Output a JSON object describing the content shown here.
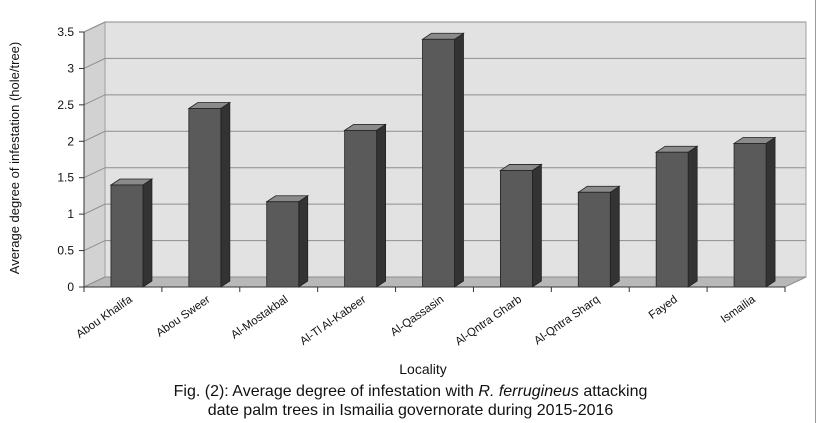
{
  "chart_data": {
    "type": "bar",
    "categories": [
      "Abou Khalifa",
      "Abou Sweer",
      "Al-Mostakbal",
      "Al-Tl Al-Kabeer",
      "Al-Qassasin",
      "Al-Qntra Gharb",
      "Al-Qntra Sharq",
      "Fayed",
      "Ismailia"
    ],
    "values": [
      1.4,
      2.45,
      1.17,
      2.15,
      3.4,
      1.6,
      1.3,
      1.85,
      1.97
    ],
    "xlabel": "Locality",
    "ylabel": "Average degree of infestation (hole/tree)",
    "ylim": [
      0,
      3.5
    ],
    "yticks": [
      "0",
      "0.5",
      "1",
      "1.5",
      "2",
      "2.5",
      "3",
      "3.5"
    ],
    "grid": true,
    "style": "3d-column",
    "colors": {
      "bar_front": "#5a5a5a",
      "bar_side": "#333333",
      "bar_top": "#8a8a8a",
      "wall": "#e2e2e2",
      "floor": "#b8b8b8"
    }
  },
  "caption": {
    "line1_before": "Fig. (2): Average degree of infestation with ",
    "line1_italic": "R. ferrugineus",
    "line1_after": " attacking",
    "line2": "date palm trees in Ismailia governorate during 2015-2016"
  }
}
